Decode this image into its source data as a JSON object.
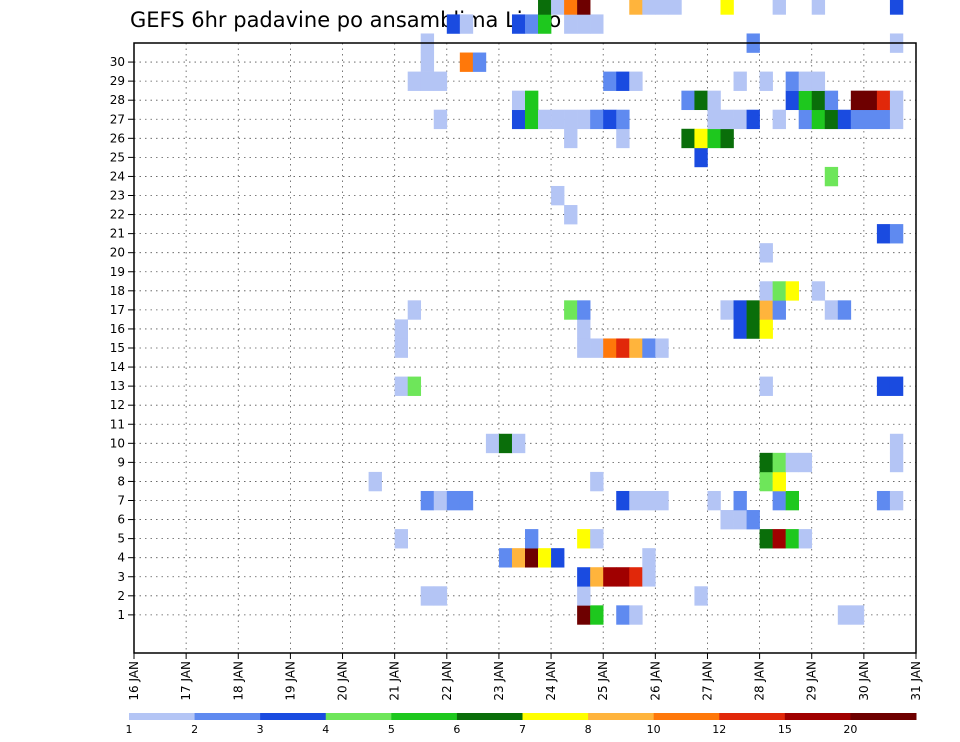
{
  "chart_data": {
    "type": "heatmap",
    "title": "GEFS 6hr padavine po ansamblima Livno",
    "x_tick_labels": [
      "16 JAN",
      "17 JAN",
      "18 JAN",
      "19 JAN",
      "20 JAN",
      "21 JAN",
      "22 JAN",
      "23 JAN",
      "24 JAN",
      "25 JAN",
      "26 JAN",
      "27 JAN",
      "28 JAN",
      "29 JAN",
      "30 JAN",
      "31 JAN"
    ],
    "x_range_days": [
      16,
      31
    ],
    "y_tick_labels": [
      "1",
      "2",
      "3",
      "4",
      "5",
      "6",
      "7",
      "8",
      "9",
      "10",
      "11",
      "12",
      "13",
      "14",
      "15",
      "16",
      "17",
      "18",
      "19",
      "20",
      "21",
      "22",
      "23",
      "24",
      "25",
      "26",
      "27",
      "28",
      "29",
      "30"
    ],
    "y_range_members": [
      0,
      30
    ],
    "grid": true,
    "legend_placement": "bottom",
    "legend_labels": [
      "1",
      "2",
      "3",
      "4",
      "5",
      "6",
      "7",
      "8",
      "10",
      "12",
      "15",
      "20"
    ],
    "legend_colors": [
      "#b4c5f5",
      "#5f8af0",
      "#1a4be0",
      "#6ee65a",
      "#1ec81e",
      "#0a6e0a",
      "#ffff00",
      "#ffb43c",
      "#ff780a",
      "#e1280a",
      "#a00000",
      "#6e0000"
    ],
    "point_note": "each point: [day, ensemble member, color level index 0-11]; day in Jan (step 0.25 = 6 h)",
    "points": [
      [
        24.5,
        0,
        11
      ],
      [
        24.75,
        0,
        4
      ],
      [
        25.25,
        0,
        1
      ],
      [
        25.5,
        0,
        0
      ],
      [
        29.5,
        0,
        0
      ],
      [
        29.75,
        0,
        0
      ],
      [
        21.5,
        1,
        0
      ],
      [
        21.75,
        1,
        0
      ],
      [
        24.5,
        1,
        0
      ],
      [
        26.75,
        1,
        0
      ],
      [
        24.5,
        2,
        2
      ],
      [
        24.75,
        2,
        7
      ],
      [
        25,
        2,
        10
      ],
      [
        25.25,
        2,
        10
      ],
      [
        25.5,
        2,
        9
      ],
      [
        25.75,
        2,
        0
      ],
      [
        23,
        3,
        1
      ],
      [
        23.25,
        3,
        7
      ],
      [
        23.5,
        3,
        11
      ],
      [
        23.75,
        3,
        6
      ],
      [
        24,
        3,
        2
      ],
      [
        25.75,
        3,
        0
      ],
      [
        21,
        4,
        0
      ],
      [
        23.5,
        4,
        1
      ],
      [
        24.5,
        4,
        6
      ],
      [
        24.75,
        4,
        0
      ],
      [
        28,
        4,
        5
      ],
      [
        28.25,
        4,
        10
      ],
      [
        28.5,
        4,
        4
      ],
      [
        28.75,
        4,
        0
      ],
      [
        27.25,
        5,
        0
      ],
      [
        27.5,
        5,
        0
      ],
      [
        27.75,
        5,
        1
      ],
      [
        21.5,
        6,
        1
      ],
      [
        21.75,
        6,
        0
      ],
      [
        22,
        6,
        1
      ],
      [
        22.25,
        6,
        1
      ],
      [
        25.25,
        6,
        2
      ],
      [
        25.5,
        6,
        0
      ],
      [
        25.75,
        6,
        0
      ],
      [
        26,
        6,
        0
      ],
      [
        27,
        6,
        0
      ],
      [
        27.5,
        6,
        1
      ],
      [
        28.25,
        6,
        1
      ],
      [
        28.5,
        6,
        4
      ],
      [
        30.25,
        6,
        1
      ],
      [
        30.5,
        6,
        0
      ],
      [
        20.5,
        7,
        0
      ],
      [
        24.75,
        7,
        0
      ],
      [
        28,
        7,
        3
      ],
      [
        28.25,
        7,
        6
      ],
      [
        28,
        8,
        5
      ],
      [
        28.25,
        8,
        3
      ],
      [
        28.5,
        8,
        0
      ],
      [
        28.75,
        8,
        0
      ],
      [
        30.5,
        8,
        0
      ],
      [
        22.75,
        9,
        0
      ],
      [
        23,
        9,
        5
      ],
      [
        23.25,
        9,
        0
      ],
      [
        30.5,
        9,
        0
      ],
      [
        21,
        12,
        0
      ],
      [
        21.25,
        12,
        3
      ],
      [
        28,
        12,
        0
      ],
      [
        30.25,
        12,
        2
      ],
      [
        30.5,
        12,
        2
      ],
      [
        21,
        14,
        0
      ],
      [
        24.5,
        14,
        0
      ],
      [
        24.75,
        14,
        0
      ],
      [
        25,
        14,
        8
      ],
      [
        25.25,
        14,
        9
      ],
      [
        25.5,
        14,
        7
      ],
      [
        25.75,
        14,
        1
      ],
      [
        26,
        14,
        0
      ],
      [
        21,
        15,
        0
      ],
      [
        24.5,
        15,
        0
      ],
      [
        27.5,
        15,
        2
      ],
      [
        27.75,
        15,
        5
      ],
      [
        28,
        15,
        6
      ],
      [
        21.25,
        16,
        0
      ],
      [
        24.25,
        16,
        3
      ],
      [
        24.5,
        16,
        1
      ],
      [
        27.25,
        16,
        0
      ],
      [
        27.5,
        16,
        2
      ],
      [
        27.75,
        16,
        5
      ],
      [
        28,
        16,
        7
      ],
      [
        28.25,
        16,
        1
      ],
      [
        29.25,
        16,
        0
      ],
      [
        29.5,
        16,
        1
      ],
      [
        28,
        17,
        0
      ],
      [
        28.25,
        17,
        3
      ],
      [
        28.5,
        17,
        6
      ],
      [
        29,
        17,
        0
      ],
      [
        28,
        19,
        0
      ],
      [
        30.25,
        20,
        2
      ],
      [
        30.5,
        20,
        1
      ],
      [
        24.25,
        21,
        0
      ],
      [
        24,
        22,
        0
      ],
      [
        29.25,
        23,
        3
      ],
      [
        26.75,
        24,
        2
      ],
      [
        24.25,
        25,
        0
      ],
      [
        25.25,
        25,
        0
      ],
      [
        26.5,
        25,
        5
      ],
      [
        26.75,
        25,
        6
      ],
      [
        27,
        25,
        4
      ],
      [
        27.25,
        25,
        5
      ],
      [
        21.75,
        26,
        0
      ],
      [
        23.25,
        26,
        2
      ],
      [
        23.5,
        26,
        4
      ],
      [
        23.75,
        26,
        0
      ],
      [
        24,
        26,
        0
      ],
      [
        24.25,
        26,
        0
      ],
      [
        24.5,
        26,
        0
      ],
      [
        24.75,
        26,
        1
      ],
      [
        25,
        26,
        2
      ],
      [
        25.25,
        26,
        1
      ],
      [
        27,
        26,
        0
      ],
      [
        27.25,
        26,
        0
      ],
      [
        27.5,
        26,
        0
      ],
      [
        27.75,
        26,
        2
      ],
      [
        28.25,
        26,
        0
      ],
      [
        28.75,
        26,
        1
      ],
      [
        29,
        26,
        4
      ],
      [
        29.25,
        26,
        5
      ],
      [
        29.5,
        26,
        2
      ],
      [
        29.75,
        26,
        1
      ],
      [
        30,
        26,
        1
      ],
      [
        30.25,
        26,
        1
      ],
      [
        30.5,
        26,
        0
      ],
      [
        23.25,
        27,
        0
      ],
      [
        23.5,
        27,
        4
      ],
      [
        26.5,
        27,
        1
      ],
      [
        26.75,
        27,
        5
      ],
      [
        27,
        27,
        0
      ],
      [
        28.5,
        27,
        2
      ],
      [
        28.75,
        27,
        4
      ],
      [
        29,
        27,
        5
      ],
      [
        29.25,
        27,
        1
      ],
      [
        29.75,
        27,
        11
      ],
      [
        30,
        27,
        11
      ],
      [
        30.25,
        27,
        9
      ],
      [
        30.5,
        27,
        0
      ],
      [
        21.25,
        28,
        0
      ],
      [
        21.5,
        28,
        0
      ],
      [
        21.75,
        28,
        0
      ],
      [
        25,
        28,
        1
      ],
      [
        25.25,
        28,
        2
      ],
      [
        25.5,
        28,
        0
      ],
      [
        27.5,
        28,
        0
      ],
      [
        28,
        28,
        0
      ],
      [
        28.5,
        28,
        1
      ],
      [
        28.75,
        28,
        0
      ],
      [
        29,
        28,
        0
      ],
      [
        21.5,
        29,
        0
      ],
      [
        22.25,
        29,
        8
      ],
      [
        22.5,
        29,
        1
      ],
      [
        21.5,
        30,
        0
      ],
      [
        27.75,
        30,
        1
      ],
      [
        30.5,
        30,
        0
      ],
      [
        22,
        31,
        2
      ],
      [
        22.25,
        31,
        0
      ],
      [
        23.25,
        31,
        2
      ],
      [
        23.5,
        31,
        1
      ],
      [
        23.75,
        31,
        4
      ],
      [
        24.25,
        31,
        0
      ],
      [
        24.5,
        31,
        0
      ],
      [
        24.75,
        31,
        0
      ],
      [
        23.75,
        32,
        5
      ],
      [
        24,
        32,
        0
      ],
      [
        24.25,
        32,
        8
      ],
      [
        24.5,
        32,
        11
      ],
      [
        25.5,
        32,
        7
      ],
      [
        25.75,
        32,
        0
      ],
      [
        26,
        32,
        0
      ],
      [
        26.25,
        32,
        0
      ],
      [
        27.25,
        32,
        6
      ],
      [
        28.25,
        32,
        0
      ],
      [
        29,
        32,
        0
      ],
      [
        30.5,
        32,
        2
      ]
    ]
  }
}
